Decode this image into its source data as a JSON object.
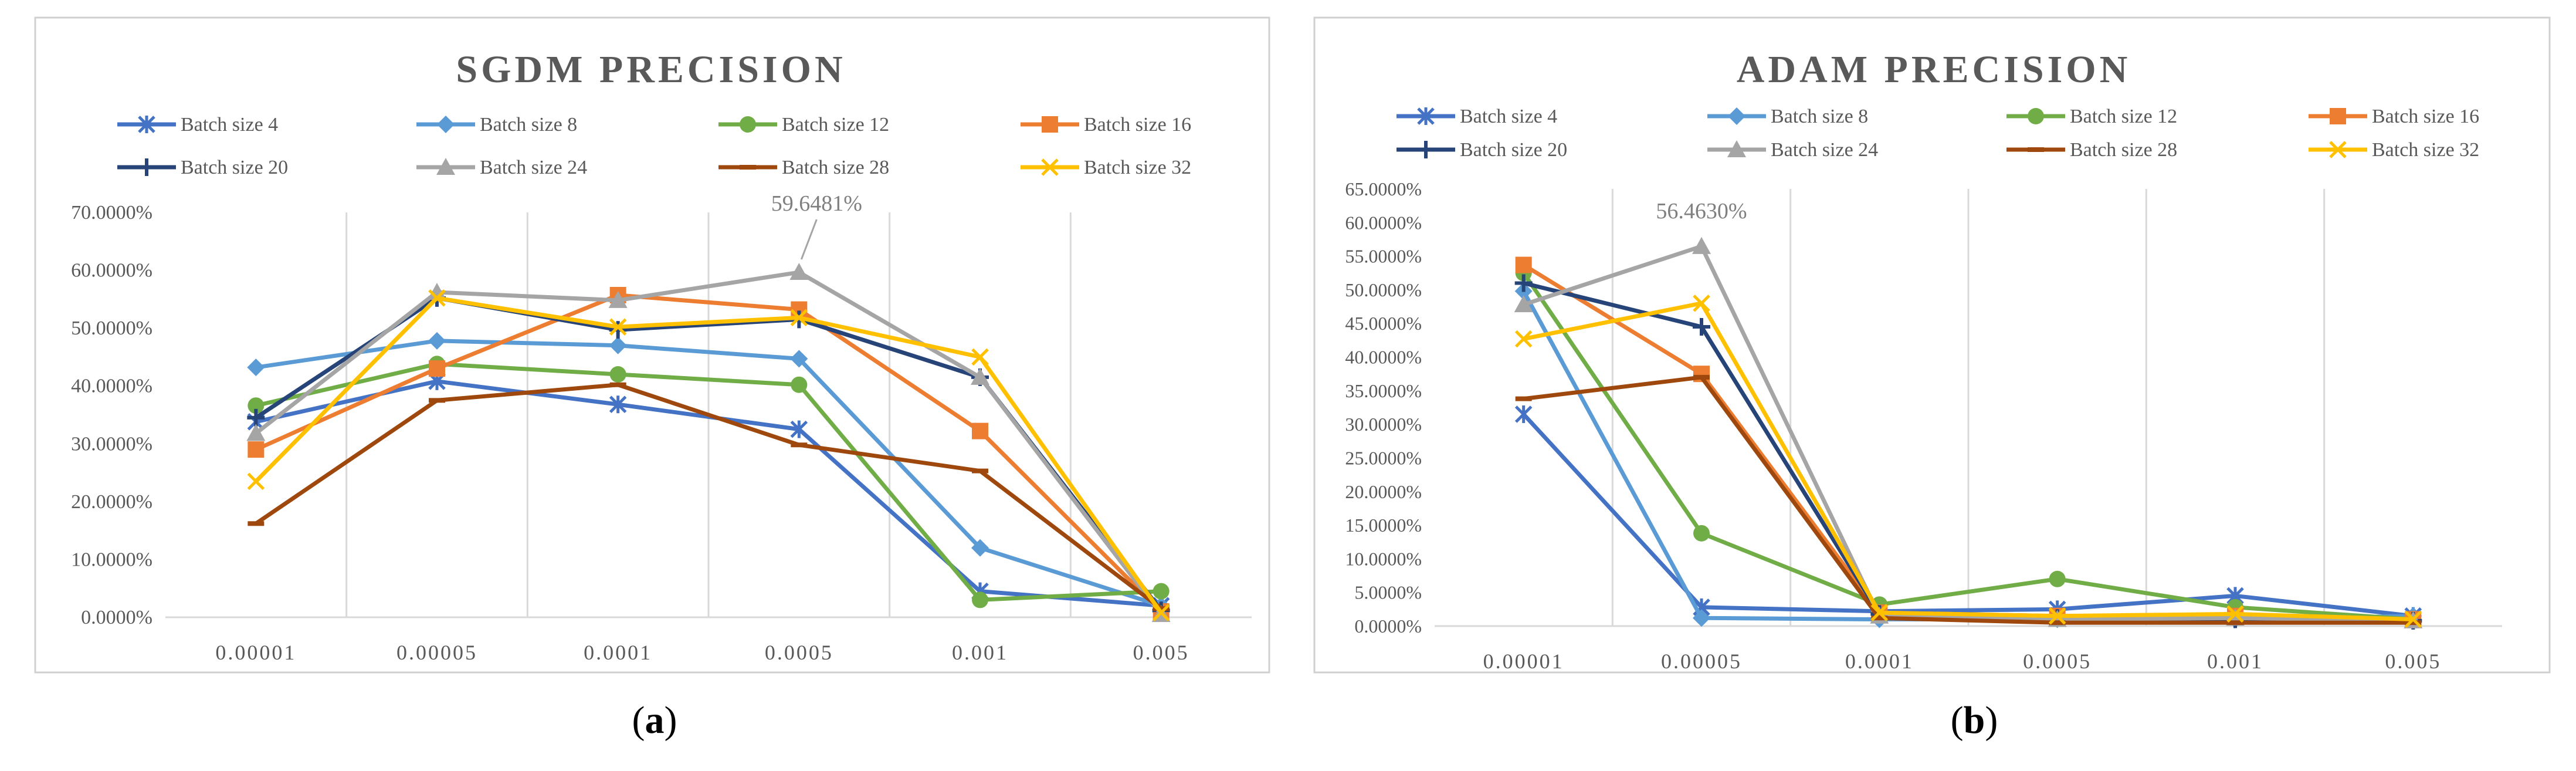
{
  "chart_data": [
    {
      "type": "line",
      "title": "SGDM PRECISION",
      "label": "a",
      "xlabel": "",
      "ylabel": "",
      "categories": [
        "0.00001",
        "0.00005",
        "0.0001",
        "0.0005",
        "0.001",
        "0.005"
      ],
      "ylim": [
        0,
        0.7
      ],
      "yticks": [
        "0.0000%",
        "10.0000%",
        "20.0000%",
        "30.0000%",
        "40.0000%",
        "50.0000%",
        "60.0000%",
        "70.0000%"
      ],
      "annotation": {
        "text": "59.6481%",
        "series": "Batch size 24",
        "index": 3
      },
      "series": [
        {
          "name": "Batch size 4",
          "color": "#4472C4",
          "marker": "asterisk",
          "values": [
            0.338,
            0.408,
            0.368,
            0.325,
            0.045,
            0.02
          ]
        },
        {
          "name": "Batch size 8",
          "color": "#5B9BD5",
          "marker": "diamond",
          "values": [
            0.432,
            0.478,
            0.47,
            0.447,
            0.12,
            0.02
          ]
        },
        {
          "name": "Batch size 12",
          "color": "#70AD47",
          "marker": "circle",
          "values": [
            0.366,
            0.438,
            0.42,
            0.402,
            0.03,
            0.045
          ]
        },
        {
          "name": "Batch size 16",
          "color": "#ED7D31",
          "marker": "square",
          "values": [
            0.29,
            0.43,
            0.557,
            0.532,
            0.322,
            0.01
          ]
        },
        {
          "name": "Batch size 20",
          "color": "#264478",
          "marker": "plus",
          "values": [
            0.345,
            0.552,
            0.497,
            0.515,
            0.415,
            0.012
          ]
        },
        {
          "name": "Batch size 24",
          "color": "#A5A5A5",
          "marker": "triangle",
          "values": [
            0.318,
            0.562,
            0.548,
            0.596481,
            0.415,
            0.005
          ]
        },
        {
          "name": "Batch size 28",
          "color": "#9E480E",
          "marker": "dash",
          "values": [
            0.162,
            0.375,
            0.402,
            0.298,
            0.253,
            0.015
          ]
        },
        {
          "name": "Batch size 32",
          "color": "#FFC000",
          "marker": "x",
          "values": [
            0.235,
            0.552,
            0.502,
            0.518,
            0.45,
            0.008
          ]
        }
      ]
    },
    {
      "type": "line",
      "title": "ADAM PRECISION",
      "label": "b",
      "xlabel": "",
      "ylabel": "",
      "categories": [
        "0.00001",
        "0.00005",
        "0.0001",
        "0.0005",
        "0.001",
        "0.005"
      ],
      "ylim": [
        0,
        0.65
      ],
      "yticks": [
        "0.0000%",
        "5.0000%",
        "10.0000%",
        "15.0000%",
        "20.0000%",
        "25.0000%",
        "30.0000%",
        "35.0000%",
        "40.0000%",
        "45.0000%",
        "50.0000%",
        "55.0000%",
        "60.0000%",
        "65.0000%"
      ],
      "annotation": {
        "text": "56.4630%",
        "series": "Batch size 24",
        "index": 1
      },
      "series": [
        {
          "name": "Batch size 4",
          "color": "#4472C4",
          "marker": "asterisk",
          "values": [
            0.315,
            0.028,
            0.022,
            0.025,
            0.045,
            0.015
          ]
        },
        {
          "name": "Batch size 8",
          "color": "#5B9BD5",
          "marker": "diamond",
          "values": [
            0.498,
            0.012,
            0.01,
            0.01,
            0.01,
            0.015
          ]
        },
        {
          "name": "Batch size 12",
          "color": "#70AD47",
          "marker": "circle",
          "values": [
            0.525,
            0.138,
            0.032,
            0.07,
            0.028,
            0.01
          ]
        },
        {
          "name": "Batch size 16",
          "color": "#ED7D31",
          "marker": "square",
          "values": [
            0.537,
            0.375,
            0.02,
            0.015,
            0.015,
            0.01
          ]
        },
        {
          "name": "Batch size 20",
          "color": "#264478",
          "marker": "plus",
          "values": [
            0.51,
            0.445,
            0.018,
            0.012,
            0.01,
            0.008
          ]
        },
        {
          "name": "Batch size 24",
          "color": "#A5A5A5",
          "marker": "triangle",
          "values": [
            0.478,
            0.56463,
            0.015,
            0.01,
            0.012,
            0.008
          ]
        },
        {
          "name": "Batch size 28",
          "color": "#9E480E",
          "marker": "dash",
          "values": [
            0.338,
            0.37,
            0.012,
            0.005,
            0.005,
            0.005
          ]
        },
        {
          "name": "Batch size 32",
          "color": "#FFC000",
          "marker": "x",
          "values": [
            0.427,
            0.48,
            0.02,
            0.015,
            0.018,
            0.01
          ]
        }
      ]
    }
  ]
}
